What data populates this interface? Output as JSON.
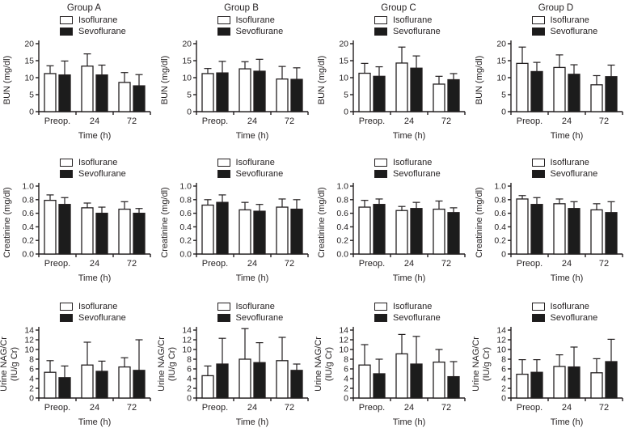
{
  "figure": {
    "background": "#ffffff",
    "text_color": "#231f20",
    "bar_colors": {
      "Isoflurane": "#ffffff",
      "Sevoflurane": "#1c1c1c"
    },
    "xlabel": "Time (h)",
    "categories": [
      "Preop.",
      "24",
      "72"
    ],
    "legend_labels": [
      "Isoflurane",
      "Sevoflurane"
    ],
    "group_titles": [
      "Group A",
      "Group B",
      "Group C",
      "Group D"
    ]
  },
  "chart_data": [
    {
      "type": "bar",
      "title": "Group A",
      "group": "A",
      "measure": "BUN",
      "ylabel": [
        "BUN (mg/dl)"
      ],
      "ylim": [
        0,
        20
      ],
      "yticks": [
        "0",
        "5",
        "10",
        "15",
        "20"
      ],
      "categories": [
        "Preop.",
        "24",
        "72"
      ],
      "grid": false,
      "legend_position": "top",
      "series": [
        {
          "name": "Isoflurane",
          "values": [
            11.2,
            13.4,
            8.6
          ],
          "errors": [
            2.3,
            3.6,
            2.9
          ]
        },
        {
          "name": "Sevoflurane",
          "values": [
            10.8,
            10.8,
            7.6
          ],
          "errors": [
            4.1,
            2.9,
            3.3
          ]
        }
      ]
    },
    {
      "type": "bar",
      "title": "Group B",
      "group": "B",
      "measure": "BUN",
      "ylabel": [
        "BUN (mg/dl)"
      ],
      "ylim": [
        0,
        20
      ],
      "yticks": [
        "0",
        "5",
        "10",
        "15",
        "20"
      ],
      "categories": [
        "Preop.",
        "24",
        "72"
      ],
      "grid": false,
      "legend_position": "top",
      "series": [
        {
          "name": "Isoflurane",
          "values": [
            11.2,
            12.6,
            9.6
          ],
          "errors": [
            1.5,
            2.1,
            3.7
          ]
        },
        {
          "name": "Sevoflurane",
          "values": [
            11.4,
            11.9,
            9.5
          ],
          "errors": [
            3.4,
            3.5,
            3.4
          ]
        }
      ]
    },
    {
      "type": "bar",
      "title": "Group C",
      "group": "C",
      "measure": "BUN",
      "ylabel": [
        "BUN (mg/dl)"
      ],
      "ylim": [
        0,
        20
      ],
      "yticks": [
        "0",
        "5",
        "10",
        "15",
        "20"
      ],
      "categories": [
        "Preop.",
        "24",
        "72"
      ],
      "grid": false,
      "legend_position": "top",
      "series": [
        {
          "name": "Isoflurane",
          "values": [
            11.3,
            14.3,
            8.1
          ],
          "errors": [
            2.9,
            4.7,
            2.3
          ]
        },
        {
          "name": "Sevoflurane",
          "values": [
            10.4,
            12.8,
            9.4
          ],
          "errors": [
            2.8,
            3.6,
            1.8
          ]
        }
      ]
    },
    {
      "type": "bar",
      "title": "Group D",
      "group": "D",
      "measure": "BUN",
      "ylabel": [
        "BUN (mg/dl)"
      ],
      "ylim": [
        0,
        20
      ],
      "yticks": [
        "0",
        "5",
        "10",
        "15",
        "20"
      ],
      "categories": [
        "Preop.",
        "24",
        "72"
      ],
      "grid": false,
      "legend_position": "top",
      "series": [
        {
          "name": "Isoflurane",
          "values": [
            14.2,
            13.0,
            7.9
          ],
          "errors": [
            4.8,
            3.7,
            2.7
          ]
        },
        {
          "name": "Sevoflurane",
          "values": [
            11.8,
            11.0,
            10.3
          ],
          "errors": [
            2.7,
            2.8,
            3.4
          ]
        }
      ]
    },
    {
      "type": "bar",
      "title": "",
      "group": "A",
      "measure": "Creatinine",
      "ylabel": [
        "Creatinine (mg/dl)"
      ],
      "ylim": [
        0,
        1.0
      ],
      "yticks": [
        "0.0",
        "0.2",
        "0.4",
        "0.6",
        "0.8",
        "1.0"
      ],
      "categories": [
        "Preop.",
        "24",
        "72"
      ],
      "grid": false,
      "legend_position": "top",
      "series": [
        {
          "name": "Isoflurane",
          "values": [
            0.79,
            0.68,
            0.66
          ],
          "errors": [
            0.08,
            0.07,
            0.11
          ]
        },
        {
          "name": "Sevoflurane",
          "values": [
            0.73,
            0.6,
            0.6
          ],
          "errors": [
            0.1,
            0.09,
            0.07
          ]
        }
      ]
    },
    {
      "type": "bar",
      "title": "",
      "group": "B",
      "measure": "Creatinine",
      "ylabel": [
        "Creatinine (mg/dl)"
      ],
      "ylim": [
        0,
        1.0
      ],
      "yticks": [
        "0.0",
        "0.2",
        "0.4",
        "0.6",
        "0.8",
        "1.0"
      ],
      "categories": [
        "Preop.",
        "24",
        "72"
      ],
      "grid": false,
      "legend_position": "top",
      "series": [
        {
          "name": "Isoflurane",
          "values": [
            0.72,
            0.65,
            0.69
          ],
          "errors": [
            0.08,
            0.11,
            0.12
          ]
        },
        {
          "name": "Sevoflurane",
          "values": [
            0.76,
            0.63,
            0.66
          ],
          "errors": [
            0.11,
            0.1,
            0.14
          ]
        }
      ]
    },
    {
      "type": "bar",
      "title": "",
      "group": "C",
      "measure": "Creatinine",
      "ylabel": [
        "Creatinine (mg/dl)"
      ],
      "ylim": [
        0,
        1.0
      ],
      "yticks": [
        "0.0",
        "0.2",
        "0.4",
        "0.6",
        "0.8",
        "1.0"
      ],
      "categories": [
        "Preop.",
        "24",
        "72"
      ],
      "grid": false,
      "legend_position": "top",
      "series": [
        {
          "name": "Isoflurane",
          "values": [
            0.69,
            0.64,
            0.66
          ],
          "errors": [
            0.1,
            0.06,
            0.12
          ]
        },
        {
          "name": "Sevoflurane",
          "values": [
            0.73,
            0.67,
            0.61
          ],
          "errors": [
            0.08,
            0.09,
            0.07
          ]
        }
      ]
    },
    {
      "type": "bar",
      "title": "",
      "group": "D",
      "measure": "Creatinine",
      "ylabel": [
        "Creatinine (mg/dl)"
      ],
      "ylim": [
        0,
        1.0
      ],
      "yticks": [
        "0",
        "0.2",
        "0.4",
        "0.6",
        "0.8",
        "1.0"
      ],
      "categories": [
        "Preop.",
        "24",
        "72"
      ],
      "grid": false,
      "legend_position": "top",
      "series": [
        {
          "name": "Isoflurane",
          "values": [
            0.81,
            0.74,
            0.65
          ],
          "errors": [
            0.05,
            0.07,
            0.09
          ]
        },
        {
          "name": "Sevoflurane",
          "values": [
            0.73,
            0.67,
            0.61
          ],
          "errors": [
            0.1,
            0.1,
            0.16
          ]
        }
      ]
    },
    {
      "type": "bar",
      "title": "",
      "group": "A",
      "measure": "Urine NAG/Cr",
      "ylabel": [
        "Urine NAG/Cr",
        "(IU/g Cr)"
      ],
      "ylim": [
        0,
        14
      ],
      "yticks": [
        "0",
        "2",
        "4",
        "6",
        "8",
        "10",
        "12",
        "14"
      ],
      "categories": [
        "Preop.",
        "24",
        "72"
      ],
      "grid": false,
      "legend_position": "top",
      "series": [
        {
          "name": "Isoflurane",
          "values": [
            5.3,
            6.8,
            6.4
          ],
          "errors": [
            2.4,
            4.7,
            1.9
          ]
        },
        {
          "name": "Sevoflurane",
          "values": [
            4.2,
            5.5,
            5.7
          ],
          "errors": [
            2.4,
            2.1,
            6.3
          ]
        }
      ]
    },
    {
      "type": "bar",
      "title": "",
      "group": "B",
      "measure": "Urine NAG/Cr",
      "ylabel": [
        "Urine NAG/Cr",
        "(IU/g Cr)"
      ],
      "ylim": [
        0,
        14
      ],
      "yticks": [
        "0",
        "2",
        "4",
        "6",
        "8",
        "10",
        "12",
        "14"
      ],
      "categories": [
        "Preop.",
        "24",
        "72"
      ],
      "grid": false,
      "legend_position": "top",
      "series": [
        {
          "name": "Isoflurane",
          "values": [
            4.6,
            8.0,
            7.7
          ],
          "errors": [
            2.0,
            6.3,
            4.8
          ]
        },
        {
          "name": "Sevoflurane",
          "values": [
            7.0,
            7.3,
            5.7
          ],
          "errors": [
            5.3,
            4.1,
            1.3
          ]
        }
      ]
    },
    {
      "type": "bar",
      "title": "",
      "group": "C",
      "measure": "Urine NAG/Cr",
      "ylabel": [
        "Urine NAG/Cr",
        "(IU/g Cr)"
      ],
      "ylim": [
        0,
        14
      ],
      "yticks": [
        "0",
        "2",
        "4",
        "6",
        "8",
        "10",
        "12",
        "14"
      ],
      "categories": [
        "Preop.",
        "24",
        "72"
      ],
      "grid": false,
      "legend_position": "top",
      "series": [
        {
          "name": "Isoflurane",
          "values": [
            6.8,
            9.1,
            7.4
          ],
          "errors": [
            4.2,
            4.0,
            2.6
          ]
        },
        {
          "name": "Sevoflurane",
          "values": [
            5.0,
            7.0,
            4.4
          ],
          "errors": [
            3.0,
            5.7,
            3.1
          ]
        }
      ]
    },
    {
      "type": "bar",
      "title": "",
      "group": "D",
      "measure": "Urine NAG/Cr",
      "ylabel": [
        "Urine NAG/Cr",
        "(IU/g Cr)"
      ],
      "ylim": [
        0,
        14
      ],
      "yticks": [
        "0",
        "2",
        "4",
        "6",
        "8",
        "10",
        "12",
        "14"
      ],
      "categories": [
        "Preop.",
        "24",
        "72"
      ],
      "grid": false,
      "legend_position": "top",
      "series": [
        {
          "name": "Isoflurane",
          "values": [
            4.9,
            6.5,
            5.2
          ],
          "errors": [
            3.0,
            2.4,
            2.9
          ]
        },
        {
          "name": "Sevoflurane",
          "values": [
            5.3,
            6.4,
            7.5
          ],
          "errors": [
            2.6,
            4.1,
            4.6
          ]
        }
      ]
    }
  ]
}
